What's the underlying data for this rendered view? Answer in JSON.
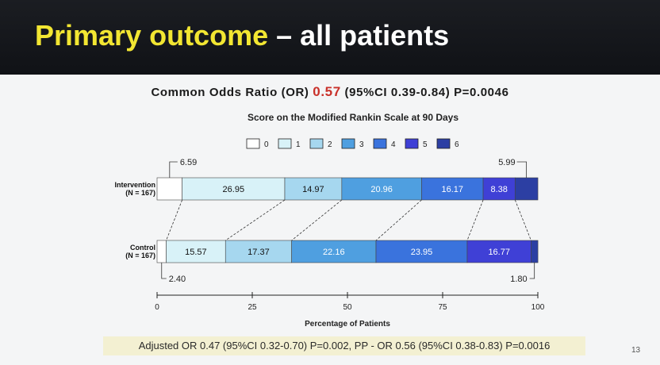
{
  "slide": {
    "title_highlight": "Primary outcome",
    "title_rest": " – all patients",
    "or_prefix": "Common Odds Ratio (OR) ",
    "or_value": "0.57",
    "or_suffix": " (95%CI 0.39-0.84) P=0.0046",
    "footer": "Adjusted OR 0.47 (95%CI 0.32-0.70) P=0.002, PP - OR 0.56 (95%CI 0.38-0.83) P=0.0016",
    "page_number": "13",
    "colors": {
      "title_bar": "#15171c",
      "title_highlight": "#f2e632",
      "or_value": "#c9312a",
      "footer_bg": "#f3f0d2"
    }
  },
  "chart_data": {
    "type": "bar",
    "orientation": "horizontal",
    "stacked": true,
    "title": "Score on the Modified Rankin Scale at 90 Days",
    "xlabel": "Percentage of Patients",
    "xlim": [
      0,
      100
    ],
    "xticks": [
      0,
      25,
      50,
      75,
      100
    ],
    "legend": [
      "0",
      "1",
      "2",
      "3",
      "4",
      "5",
      "6"
    ],
    "legend_position": "top",
    "colors": [
      "#ffffff",
      "#d8f2f8",
      "#a6d7ef",
      "#4f9fe0",
      "#3a73dd",
      "#3f40d6",
      "#2c3fa3"
    ],
    "rows": [
      {
        "label": "Intervention",
        "sublabel": "(N = 167)",
        "values": [
          6.59,
          26.95,
          14.97,
          20.96,
          16.17,
          8.38,
          5.99
        ],
        "labels": [
          "",
          "26.95",
          "14.97",
          "20.96",
          "16.17",
          "8.38",
          ""
        ],
        "callouts": [
          "6.59",
          "5.99"
        ]
      },
      {
        "label": "Control",
        "sublabel": "(N = 167)",
        "values": [
          2.4,
          15.57,
          17.37,
          22.16,
          23.95,
          16.77,
          1.8
        ],
        "labels": [
          "",
          "15.57",
          "17.37",
          "22.16",
          "23.95",
          "16.77",
          ""
        ],
        "callouts": [
          "2.40",
          "1.80"
        ]
      }
    ]
  }
}
